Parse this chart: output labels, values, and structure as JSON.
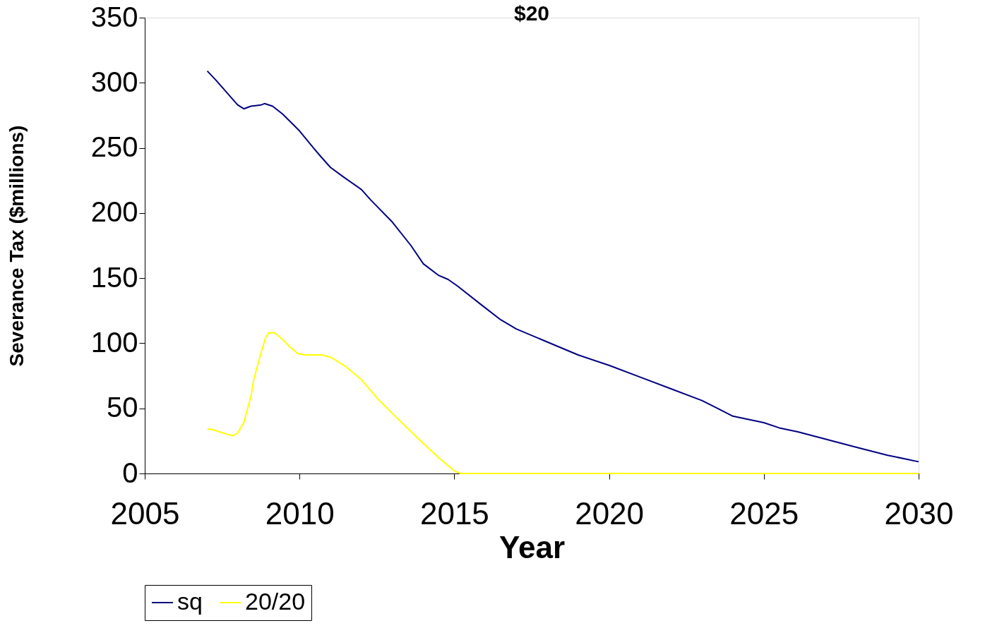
{
  "chart_data": {
    "type": "line",
    "title": "$20",
    "xlabel": "Year",
    "ylabel": "Severance Tax ($millions)",
    "xlim": [
      2005,
      2030
    ],
    "xticks": [
      2005,
      2010,
      2015,
      2020,
      2025,
      2030
    ],
    "ylim": [
      0,
      350
    ],
    "yticks": [
      0,
      50,
      100,
      150,
      200,
      250,
      300,
      350
    ],
    "grid": false,
    "legend": "bottom",
    "series": [
      {
        "name": "sq",
        "color": "#000080",
        "x": [
          2007.02,
          2007.3,
          2007.67,
          2008.0,
          2008.2,
          2008.43,
          2008.76,
          2008.87,
          2009.13,
          2009.45,
          2010.0,
          2010.45,
          2010.7,
          2011.0,
          2011.4,
          2012.0,
          2012.3,
          2013.0,
          2013.6,
          2014.0,
          2014.5,
          2014.8,
          2015.1,
          2015.9,
          2016.5,
          2017.0,
          2017.9,
          2019.0,
          2020.0,
          2021.0,
          2022.0,
          2023.0,
          2023.5,
          2024.0,
          2025.0,
          2025.5,
          2026.1,
          2026.9,
          2028.0,
          2029.0,
          2030.0
        ],
        "values": [
          309,
          302,
          292,
          283,
          280,
          282,
          283,
          284,
          282,
          276,
          263,
          250,
          243,
          235,
          228,
          218,
          210,
          193,
          175,
          161,
          152,
          149,
          144,
          129,
          118,
          111,
          102,
          91,
          83,
          74,
          65,
          56,
          50,
          44,
          39,
          35,
          32,
          27,
          20,
          14,
          9
        ]
      },
      {
        "name": "20/20",
        "color": "#ffff00",
        "x": [
          2007.02,
          2007.15,
          2007.67,
          2007.85,
          2008.0,
          2008.2,
          2008.3,
          2008.43,
          2008.52,
          2008.75,
          2008.9,
          2009.0,
          2009.2,
          2009.45,
          2009.7,
          2009.95,
          2010.2,
          2010.45,
          2010.73,
          2011.03,
          2011.5,
          2012.0,
          2012.5,
          2013.0,
          2014.0,
          2014.5,
          2015.0,
          2015.2,
          2015.7,
          2020.0,
          2025.0,
          2030.0
        ],
        "values": [
          34,
          34,
          30,
          29,
          31,
          39,
          48,
          59,
          72,
          92,
          104,
          108,
          108,
          103,
          97,
          92,
          91,
          91,
          91,
          89,
          82,
          72,
          58,
          46,
          23,
          12,
          2,
          0,
          0,
          0,
          0,
          0
        ]
      }
    ]
  }
}
